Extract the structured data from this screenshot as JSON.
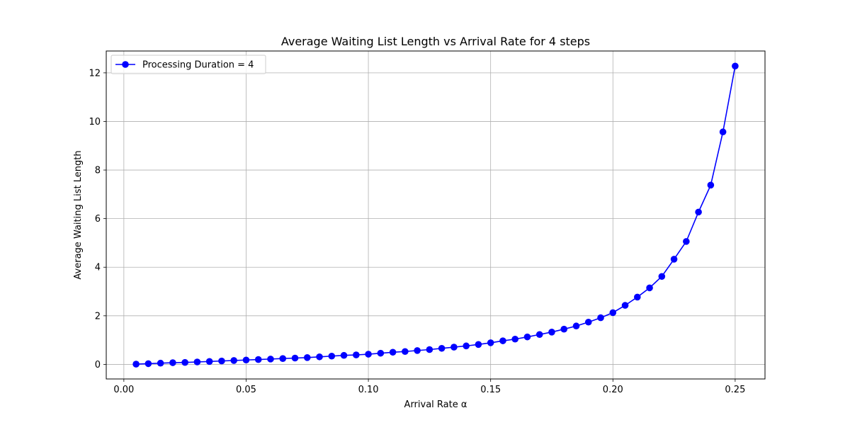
{
  "chart_data": {
    "type": "line",
    "title": "Average Waiting List Length vs Arrival Rate for 4 steps",
    "xlabel": "Arrival Rate α",
    "ylabel": "Average Waiting List Length",
    "xlim": [
      -0.0072,
      0.2622
    ],
    "ylim": [
      -0.6,
      12.9
    ],
    "xticks": [
      0.0,
      0.05,
      0.1,
      0.15,
      0.2,
      0.25
    ],
    "xtick_labels": [
      "0.00",
      "0.05",
      "0.10",
      "0.15",
      "0.20",
      "0.25"
    ],
    "yticks": [
      0,
      2,
      4,
      6,
      8,
      10,
      12
    ],
    "ytick_labels": [
      "0",
      "2",
      "4",
      "6",
      "8",
      "10",
      "12"
    ],
    "grid": true,
    "legend_position": "top-left",
    "x": [
      0.005,
      0.01,
      0.015,
      0.02,
      0.025,
      0.03,
      0.035,
      0.04,
      0.045,
      0.05,
      0.055,
      0.06,
      0.065,
      0.07,
      0.075,
      0.08,
      0.085,
      0.09,
      0.095,
      0.1,
      0.105,
      0.11,
      0.115,
      0.12,
      0.125,
      0.13,
      0.135,
      0.14,
      0.145,
      0.15,
      0.155,
      0.16,
      0.165,
      0.17,
      0.175,
      0.18,
      0.185,
      0.19,
      0.195,
      0.2,
      0.205,
      0.21,
      0.215,
      0.22,
      0.225,
      0.23,
      0.235,
      0.24,
      0.245,
      0.25
    ],
    "series": [
      {
        "name": "Processing Duration = 4",
        "color": "#0000ff",
        "marker": "circle",
        "values": [
          0.01,
          0.03,
          0.05,
          0.07,
          0.08,
          0.1,
          0.12,
          0.14,
          0.16,
          0.18,
          0.2,
          0.22,
          0.24,
          0.26,
          0.28,
          0.31,
          0.34,
          0.37,
          0.39,
          0.42,
          0.46,
          0.5,
          0.53,
          0.57,
          0.61,
          0.66,
          0.71,
          0.76,
          0.82,
          0.89,
          0.97,
          1.04,
          1.13,
          1.23,
          1.33,
          1.45,
          1.58,
          1.74,
          1.92,
          2.13,
          2.43,
          2.77,
          3.15,
          3.62,
          4.33,
          5.06,
          6.27,
          7.38,
          9.57,
          12.28
        ]
      }
    ]
  }
}
